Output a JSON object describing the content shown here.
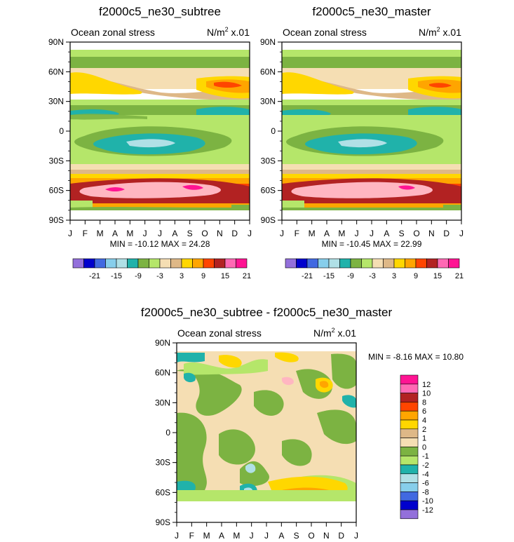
{
  "chart_data": [
    {
      "type": "heatmap",
      "title": "f2000c5_ne30_subtree",
      "left_label": "Ocean zonal stress",
      "units": "N/m",
      "units_sup": "2",
      "units_suffix": "x.01",
      "yticks": [
        "90N",
        "60N",
        "30N",
        "0",
        "30S",
        "60S",
        "90S"
      ],
      "xticks": [
        "J",
        "F",
        "M",
        "A",
        "M",
        "J",
        "J",
        "A",
        "S",
        "O",
        "N",
        "D",
        "J"
      ],
      "ylim": [
        -90,
        90
      ],
      "stats": "MIN = -10.12 MAX =  24.28",
      "colorbar_labels": [
        "-21",
        "-15",
        "-9",
        "-3",
        "3",
        "9",
        "15",
        "21"
      ]
    },
    {
      "type": "heatmap",
      "title": "f2000c5_ne30_master",
      "left_label": "Ocean zonal stress",
      "units": "N/m",
      "units_sup": "2",
      "units_suffix": "x.01",
      "yticks": [
        "90N",
        "60N",
        "30N",
        "0",
        "30S",
        "60S",
        "90S"
      ],
      "xticks": [
        "J",
        "F",
        "M",
        "A",
        "M",
        "J",
        "J",
        "A",
        "S",
        "O",
        "N",
        "D",
        "J"
      ],
      "ylim": [
        -90,
        90
      ],
      "stats": "MIN = -10.45 MAX =  22.99",
      "colorbar_labels": [
        "-21",
        "-15",
        "-9",
        "-3",
        "3",
        "9",
        "15",
        "21"
      ]
    },
    {
      "type": "heatmap",
      "title": "f2000c5_ne30_subtree - f2000c5_ne30_master",
      "left_label": "Ocean zonal stress",
      "units": "N/m",
      "units_sup": "2",
      "units_suffix": "x.01",
      "yticks": [
        "90N",
        "60N",
        "30N",
        "0",
        "30S",
        "60S",
        "90S"
      ],
      "xticks": [
        "J",
        "F",
        "M",
        "A",
        "M",
        "J",
        "J",
        "A",
        "S",
        "O",
        "N",
        "D",
        "J"
      ],
      "ylim": [
        -90,
        90
      ],
      "stats": "MIN =  -8.16 MAX =  10.80",
      "colorbar_labels": [
        "12",
        "10",
        "8",
        "6",
        "4",
        "2",
        "1",
        "0",
        "-1",
        "-2",
        "-4",
        "-6",
        "-8",
        "-10",
        "-12"
      ]
    }
  ],
  "colors": {
    "main_palette": [
      "#9370db",
      "#0000cd",
      "#4169e1",
      "#87ceeb",
      "#b0e0e6",
      "#20b2aa",
      "#7cb342",
      "#b5e66a",
      "#f5deb3",
      "#deb887",
      "#ffd700",
      "#ffa500",
      "#ff4500",
      "#b22222",
      "#ff69b4",
      "#ff1493"
    ],
    "diff_palette": [
      "#ff1493",
      "#ff69b4",
      "#b22222",
      "#ff4500",
      "#ffa500",
      "#ffd700",
      "#deb887",
      "#f5deb3",
      "#7cb342",
      "#b5e66a",
      "#20b2aa",
      "#b0e0e6",
      "#87ceeb",
      "#4169e1",
      "#0000cd",
      "#9370db"
    ]
  }
}
